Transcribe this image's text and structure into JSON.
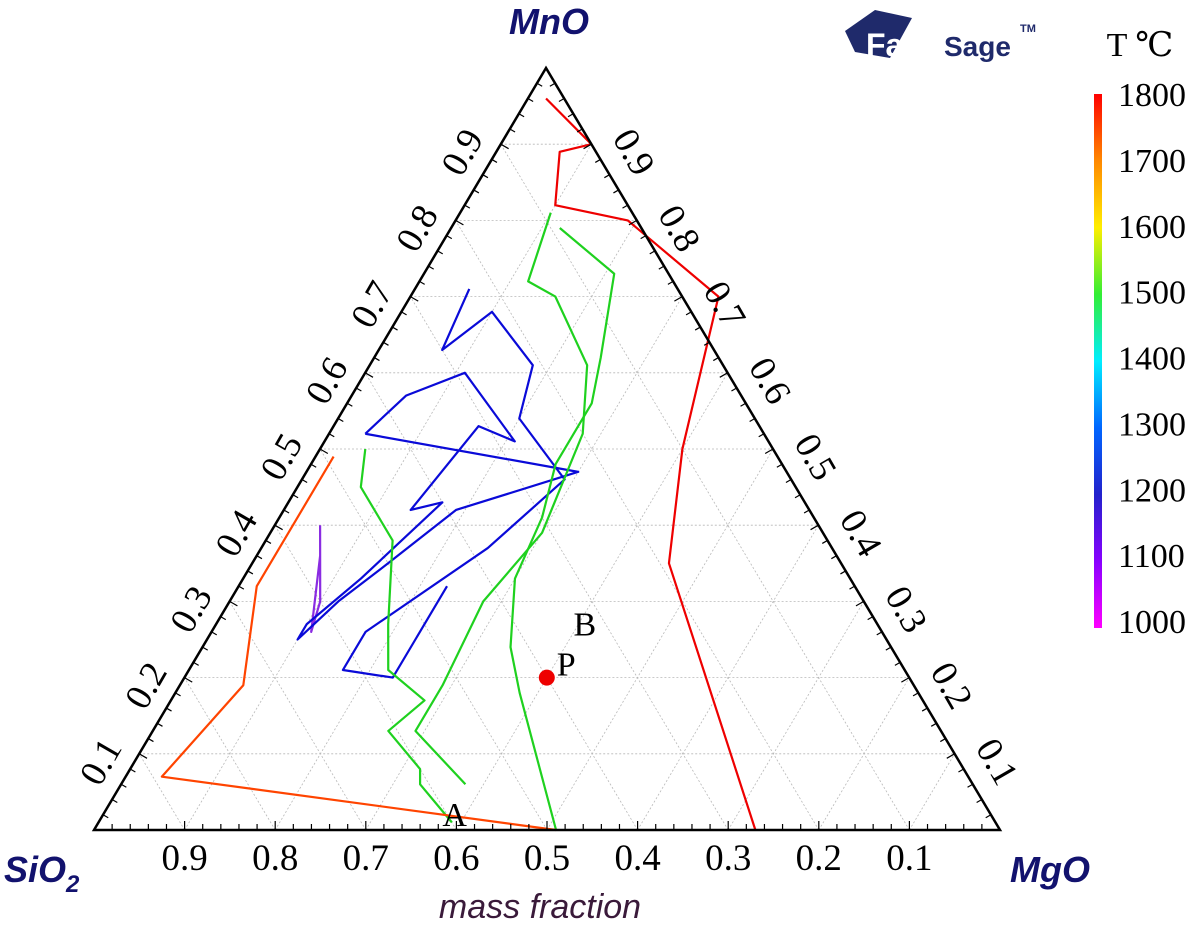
{
  "logo": {
    "text_bold": "Fact",
    "text_light": "Sage",
    "tm": "TM"
  },
  "chart_data": {
    "type": "ternary-contour",
    "components": {
      "top": "MnO",
      "left": "SiO",
      "left_subscript": "2",
      "right": "MgO"
    },
    "xlabel": "mass fraction",
    "axis_ticks": [
      "0.1",
      "0.2",
      "0.3",
      "0.4",
      "0.5",
      "0.6",
      "0.7",
      "0.8",
      "0.9"
    ],
    "bottom_ticks": [
      "0.9",
      "0.8",
      "0.7",
      "0.6",
      "0.5",
      "0.4",
      "0.3",
      "0.2",
      "0.1"
    ],
    "grid": true,
    "colorbar": {
      "title": "T ℃",
      "min": 1000,
      "max": 1800,
      "labels": [
        "1800",
        "1700",
        "1600",
        "1500",
        "1400",
        "1300",
        "1200",
        "1100",
        "1000"
      ],
      "stops": [
        "#ff0000",
        "#ff8800",
        "#ffee00",
        "#33ee33",
        "#00eeff",
        "#0066ff",
        "#2222cc",
        "#8800ff",
        "#ff00ff"
      ]
    },
    "isotherms": [
      {
        "T": 1100,
        "color": "#8a2be2",
        "points": [
          [
            0.4,
            0.05
          ],
          [
            0.36,
            0.07
          ],
          [
            0.26,
            0.11
          ],
          [
            0.3,
            0.1
          ],
          [
            0.4,
            0.05
          ]
        ]
      },
      {
        "T": 1200,
        "color": "#0a0ad8",
        "points": [
          [
            0.52,
            0.04
          ],
          [
            0.57,
            0.06
          ],
          [
            0.6,
            0.11
          ],
          [
            0.51,
            0.21
          ],
          [
            0.53,
            0.16
          ],
          [
            0.42,
            0.14
          ],
          [
            0.43,
            0.17
          ],
          [
            0.33,
            0.13
          ],
          [
            0.27,
            0.1
          ],
          [
            0.25,
            0.1
          ],
          [
            0.3,
            0.12
          ],
          [
            0.35,
            0.15
          ],
          [
            0.42,
            0.19
          ],
          [
            0.47,
            0.3
          ],
          [
            0.52,
            0.04
          ]
        ]
      },
      {
        "T": 1300,
        "color": "#0a0ad8",
        "points": [
          [
            0.71,
            0.06
          ],
          [
            0.63,
            0.07
          ],
          [
            0.68,
            0.1
          ],
          [
            0.61,
            0.18
          ],
          [
            0.54,
            0.2
          ],
          [
            0.46,
            0.29
          ],
          [
            0.37,
            0.25
          ],
          [
            0.26,
            0.17
          ],
          [
            0.21,
            0.17
          ],
          [
            0.2,
            0.23
          ],
          [
            0.25,
            0.23
          ],
          [
            0.32,
            0.23
          ]
        ]
      },
      {
        "T": 1400,
        "color": "#1fd11f",
        "points": [
          [
            0.81,
            0.1
          ],
          [
            0.72,
            0.12
          ],
          [
            0.7,
            0.16
          ],
          [
            0.61,
            0.24
          ],
          [
            0.52,
            0.28
          ],
          [
            0.39,
            0.3
          ],
          [
            0.3,
            0.28
          ],
          [
            0.19,
            0.29
          ],
          [
            0.13,
            0.29
          ],
          [
            0.06,
            0.38
          ]
        ]
      },
      {
        "T": 1500,
        "color": "#1fd11f",
        "points": [
          [
            0.5,
            0.05
          ],
          [
            0.45,
            0.07
          ],
          [
            0.38,
            0.14
          ],
          [
            0.27,
            0.19
          ],
          [
            0.21,
            0.22
          ],
          [
            0.17,
            0.28
          ],
          [
            0.13,
            0.26
          ],
          [
            0.08,
            0.32
          ],
          [
            0.06,
            0.33
          ],
          [
            0.01,
            0.39
          ]
        ]
      },
      {
        "T": 1600,
        "color": "#1fd11f",
        "points": [
          [
            0.79,
            0.12
          ],
          [
            0.73,
            0.21
          ],
          [
            0.62,
            0.25
          ],
          [
            0.56,
            0.27
          ],
          [
            0.48,
            0.27
          ],
          [
            0.41,
            0.29
          ],
          [
            0.33,
            0.3
          ],
          [
            0.24,
            0.34
          ],
          [
            0.18,
            0.38
          ],
          [
            0.0,
            0.51
          ]
        ]
      },
      {
        "T": 1700,
        "color": "#ff4400",
        "points": [
          [
            0.49,
            0.02
          ],
          [
            0.32,
            0.02
          ],
          [
            0.19,
            0.07
          ],
          [
            0.07,
            0.04
          ],
          [
            0.0,
            0.51
          ]
        ]
      },
      {
        "T": 1800,
        "color": "#ee0000",
        "points": [
          [
            0.96,
            0.02
          ],
          [
            0.9,
            0.1
          ],
          [
            0.89,
            0.07
          ],
          [
            0.82,
            0.1
          ],
          [
            0.8,
            0.19
          ],
          [
            0.7,
            0.34
          ],
          [
            0.5,
            0.4
          ],
          [
            0.35,
            0.46
          ],
          [
            0.0,
            0.73
          ]
        ]
      }
    ],
    "annotations": [
      {
        "label": "A",
        "mno": 0.0,
        "mgo": 0.4,
        "type": "text"
      },
      {
        "label": "B",
        "mno": 0.25,
        "mgo": 0.42,
        "type": "text"
      },
      {
        "label": "P",
        "mno": 0.2,
        "mgo": 0.4,
        "type": "point",
        "color": "#ee0000"
      }
    ]
  }
}
